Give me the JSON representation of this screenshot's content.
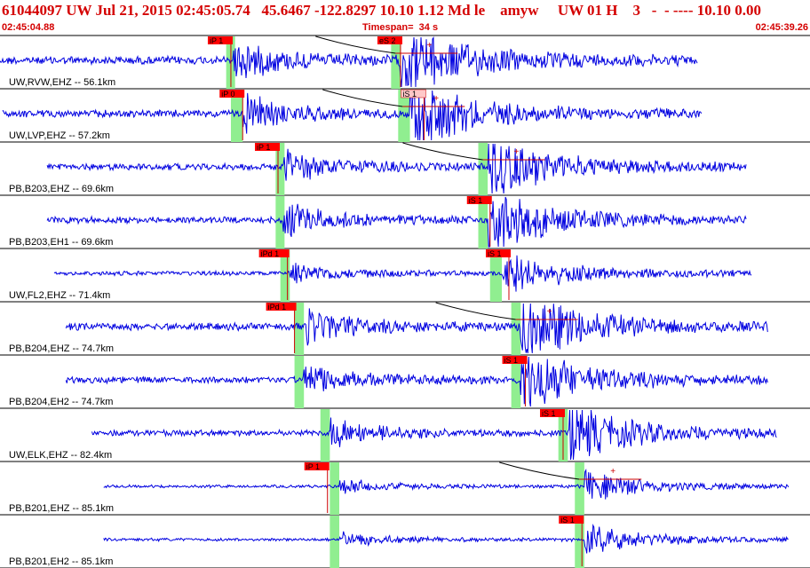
{
  "header": {
    "title": "61044097 UW Jul 21, 2015 02:45:05.74   45.6467 -122.8297 10.10 1.12 Md le    amyw     UW 01 H    3   -  - ---- 10.10 0.00",
    "time_start": "02:45:04.88",
    "timespan_label": "Timespan=  34 s",
    "time_end": "02:45:39.26"
  },
  "colors": {
    "trace": "#0000e0",
    "pick_box": "#ff0000",
    "pick_box_alt": "#ffc8c8",
    "pick_window": "#90ee90",
    "header_text": "#d40000",
    "divider": "#000000"
  },
  "time_axis": {
    "start_s": 0,
    "end_s": 34.38
  },
  "channels": [
    {
      "label": "UW,RVW,EHZ -- 56.1km",
      "trace_start_s": 0.0,
      "trace_end_s": 29.6,
      "amp": 0.55,
      "p_pick": {
        "label": "iP 1",
        "time_s": 9.8,
        "style": "red"
      },
      "s_pick": {
        "label": "eS 2",
        "time_s": 17.0,
        "style": "red"
      },
      "p_window_s": [
        9.6,
        9.9
      ],
      "s_window_s": [
        16.6,
        17.0
      ],
      "coda_marks": true
    },
    {
      "label": "UW,LVP,EHZ -- 57.2km",
      "trace_start_s": 0.1,
      "trace_end_s": 29.8,
      "amp": 0.5,
      "p_pick": {
        "label": "iP 0",
        "time_s": 10.3,
        "style": "red"
      },
      "s_pick": {
        "label": "iS 1",
        "time_s": 18.0,
        "style": "pink"
      },
      "p_window_s": [
        9.8,
        10.3
      ],
      "s_window_s": [
        16.9,
        17.4
      ],
      "coda_marks": true
    },
    {
      "label": "PB,B203,EHZ -- 69.6km",
      "trace_start_s": 2.0,
      "trace_end_s": 31.7,
      "amp": 0.45,
      "p_pick": {
        "label": "iP 1",
        "time_s": 11.8,
        "style": "red"
      },
      "s_pick": null,
      "p_window_s": [
        11.7,
        12.0
      ],
      "s_window_s": [
        20.3,
        20.7
      ],
      "coda_marks": true
    },
    {
      "label": "PB,B203,EH1 -- 69.6km",
      "trace_start_s": 2.0,
      "trace_end_s": 31.7,
      "amp": 0.45,
      "p_pick": null,
      "s_pick": {
        "label": "iS 1",
        "time_s": 20.8,
        "style": "red"
      },
      "p_window_s": [
        11.7,
        12.0
      ],
      "s_window_s": [
        20.3,
        20.7
      ],
      "coda_marks": false
    },
    {
      "label": "UW,FL2,EHZ -- 71.4km",
      "trace_start_s": 2.3,
      "trace_end_s": 31.9,
      "amp": 0.3,
      "p_pick": {
        "label": "iPd 1",
        "time_s": 12.2,
        "style": "red"
      },
      "s_pick": {
        "label": "iS 1",
        "time_s": 21.6,
        "style": "red"
      },
      "p_window_s": [
        11.9,
        12.3
      ],
      "s_window_s": [
        20.8,
        21.3
      ],
      "coda_marks": false
    },
    {
      "label": "PB,B204,EHZ -- 74.7km",
      "trace_start_s": 2.8,
      "trace_end_s": 32.6,
      "amp": 0.5,
      "p_pick": {
        "label": "iPd 1",
        "time_s": 12.5,
        "style": "red"
      },
      "s_pick": null,
      "p_window_s": [
        12.5,
        12.9
      ],
      "s_window_s": [
        21.7,
        22.1
      ],
      "coda_marks": true
    },
    {
      "label": "PB,B204,EH2 -- 74.7km",
      "trace_start_s": 2.8,
      "trace_end_s": 32.6,
      "amp": 0.45,
      "p_pick": null,
      "s_pick": {
        "label": "iS 1",
        "time_s": 22.3,
        "style": "red"
      },
      "p_window_s": [
        12.5,
        12.9
      ],
      "s_window_s": [
        21.7,
        22.1
      ],
      "coda_marks": false
    },
    {
      "label": "UW,ELK,EHZ -- 82.4km",
      "trace_start_s": 3.9,
      "trace_end_s": 33.0,
      "amp": 0.4,
      "p_pick": null,
      "s_pick": {
        "label": "iS 1",
        "time_s": 23.9,
        "style": "red"
      },
      "p_window_s": [
        13.6,
        14.0
      ],
      "s_window_s": [
        23.7,
        24.1
      ],
      "coda_marks": false
    },
    {
      "label": "PB,B201,EHZ -- 85.1km",
      "trace_start_s": 4.4,
      "trace_end_s": 33.5,
      "amp": 0.2,
      "p_pick": {
        "label": "iP 1",
        "time_s": 13.9,
        "style": "red"
      },
      "s_pick": null,
      "p_window_s": [
        14.0,
        14.4
      ],
      "s_window_s": [
        24.4,
        24.8
      ],
      "coda_marks": true
    },
    {
      "label": "PB,B201,EH2 -- 85.1km",
      "trace_start_s": 4.4,
      "trace_end_s": 33.5,
      "amp": 0.2,
      "p_pick": null,
      "s_pick": {
        "label": "iS 1",
        "time_s": 24.7,
        "style": "red"
      },
      "p_window_s": [
        14.0,
        14.4
      ],
      "s_window_s": [
        24.4,
        24.8
      ],
      "coda_marks": false
    }
  ]
}
